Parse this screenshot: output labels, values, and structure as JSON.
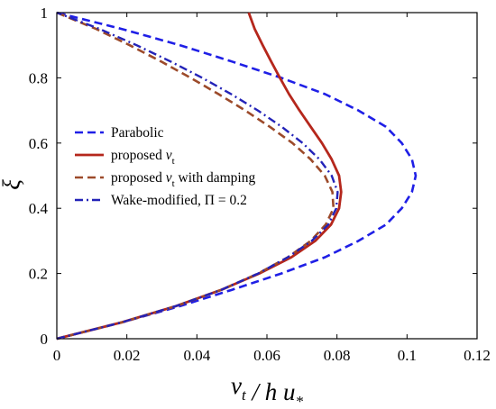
{
  "chart_data": {
    "type": "line",
    "xlabel": "ν_t / h u_*",
    "ylabel": "ξ",
    "xlim": [
      0,
      0.12
    ],
    "ylim": [
      0,
      1
    ],
    "x_ticks": [
      "0",
      "0.02",
      "0.04",
      "0.06",
      "0.08",
      "0.1",
      "0.12"
    ],
    "y_ticks": [
      "0",
      "0.2",
      "0.4",
      "0.6",
      "0.8",
      "1"
    ],
    "grid": false,
    "legend_position": "center-left",
    "series": [
      {
        "name": "Parabolic",
        "color": "#1f1fe6",
        "style": "dashed",
        "points": [
          [
            0,
            0
          ],
          [
            0.0185,
            0.05
          ],
          [
            0.0352,
            0.1
          ],
          [
            0.05,
            0.15
          ],
          [
            0.0641,
            0.2
          ],
          [
            0.0766,
            0.25
          ],
          [
            0.0861,
            0.3
          ],
          [
            0.094,
            0.35
          ],
          [
            0.0985,
            0.4
          ],
          [
            0.1014,
            0.45
          ],
          [
            0.1025,
            0.5
          ],
          [
            0.1014,
            0.55
          ],
          [
            0.0985,
            0.6
          ],
          [
            0.094,
            0.65
          ],
          [
            0.0861,
            0.7
          ],
          [
            0.0766,
            0.75
          ],
          [
            0.0641,
            0.8
          ],
          [
            0.05,
            0.85
          ],
          [
            0.0352,
            0.9
          ],
          [
            0.0185,
            0.95
          ],
          [
            0,
            1
          ]
        ]
      },
      {
        "name": "proposed ν_t",
        "color": "#b5271c",
        "style": "solid",
        "points": [
          [
            0,
            0
          ],
          [
            0.0185,
            0.05
          ],
          [
            0.034,
            0.1
          ],
          [
            0.047,
            0.15
          ],
          [
            0.0578,
            0.2
          ],
          [
            0.067,
            0.25
          ],
          [
            0.0738,
            0.3
          ],
          [
            0.0783,
            0.35
          ],
          [
            0.0806,
            0.4
          ],
          [
            0.0812,
            0.45
          ],
          [
            0.0806,
            0.5
          ],
          [
            0.0785,
            0.55
          ],
          [
            0.0757,
            0.6
          ],
          [
            0.0725,
            0.65
          ],
          [
            0.0693,
            0.7
          ],
          [
            0.0663,
            0.75
          ],
          [
            0.0637,
            0.8
          ],
          [
            0.0612,
            0.85
          ],
          [
            0.0588,
            0.9
          ],
          [
            0.0565,
            0.95
          ],
          [
            0.0548,
            1
          ]
        ]
      },
      {
        "name": "proposed ν_t with damping",
        "color": "#9c4a2a",
        "style": "dashed",
        "points": [
          [
            0,
            0
          ],
          [
            0.0185,
            0.05
          ],
          [
            0.034,
            0.1
          ],
          [
            0.047,
            0.15
          ],
          [
            0.0575,
            0.2
          ],
          [
            0.066,
            0.25
          ],
          [
            0.0725,
            0.3
          ],
          [
            0.0768,
            0.35
          ],
          [
            0.079,
            0.4
          ],
          [
            0.0787,
            0.45
          ],
          [
            0.0765,
            0.5
          ],
          [
            0.0725,
            0.55
          ],
          [
            0.0673,
            0.6
          ],
          [
            0.0608,
            0.65
          ],
          [
            0.0538,
            0.7
          ],
          [
            0.0462,
            0.75
          ],
          [
            0.0382,
            0.8
          ],
          [
            0.0298,
            0.85
          ],
          [
            0.0208,
            0.9
          ],
          [
            0.0112,
            0.95
          ],
          [
            0,
            1
          ]
        ]
      },
      {
        "name": "Wake-modified, Π = 0.2",
        "color": "#2323b8",
        "style": "dashdot",
        "points": [
          [
            0,
            0
          ],
          [
            0.0185,
            0.05
          ],
          [
            0.034,
            0.1
          ],
          [
            0.047,
            0.15
          ],
          [
            0.0575,
            0.2
          ],
          [
            0.066,
            0.25
          ],
          [
            0.0728,
            0.3
          ],
          [
            0.0775,
            0.35
          ],
          [
            0.0798,
            0.4
          ],
          [
            0.0802,
            0.45
          ],
          [
            0.0785,
            0.5
          ],
          [
            0.075,
            0.55
          ],
          [
            0.0702,
            0.6
          ],
          [
            0.0642,
            0.65
          ],
          [
            0.0574,
            0.7
          ],
          [
            0.0498,
            0.75
          ],
          [
            0.0415,
            0.8
          ],
          [
            0.0325,
            0.85
          ],
          [
            0.0228,
            0.9
          ],
          [
            0.0122,
            0.95
          ],
          [
            0,
            1
          ]
        ]
      }
    ]
  }
}
